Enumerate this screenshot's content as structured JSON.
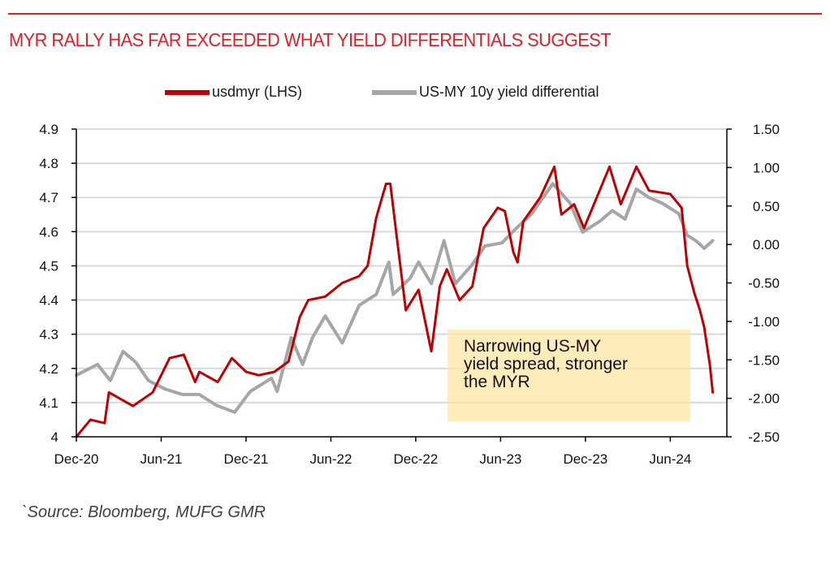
{
  "header": {
    "title": "MYR RALLY HAS FAR EXCEEDED WHAT YIELD DIFFERENTIALS SUGGEST"
  },
  "legend": [
    {
      "label": "usdmyr (LHS)",
      "color": "#c00000"
    },
    {
      "label": "US-MY 10y yield differential",
      "color": "#a6a6a6"
    }
  ],
  "annotation": {
    "lines": [
      "Narrowing US-MY",
      "yield spread, stronger",
      "the MYR"
    ]
  },
  "footer": {
    "source": "`Source: Bloomberg, MUFG GMR"
  },
  "chart_data": {
    "type": "line",
    "title": "MYR RALLY HAS FAR EXCEEDED WHAT YIELD DIFFERENTIALS SUGGEST",
    "xlabel": "",
    "x_unit": "months since Dec-2020",
    "x_range": [
      0,
      46
    ],
    "x_ticks": [
      {
        "month": 0,
        "label": "Dec-20"
      },
      {
        "month": 6,
        "label": "Jun-21"
      },
      {
        "month": 12,
        "label": "Dec-21"
      },
      {
        "month": 18,
        "label": "Jun-22"
      },
      {
        "month": 24,
        "label": "Dec-22"
      },
      {
        "month": 30,
        "label": "Jun-23"
      },
      {
        "month": 36,
        "label": "Dec-23"
      },
      {
        "month": 42,
        "label": "Jun-24"
      }
    ],
    "y_left": {
      "label": "usdmyr",
      "range": [
        4.0,
        4.9
      ],
      "ticks": [
        "4",
        "4.1",
        "4.2",
        "4.3",
        "4.4",
        "4.5",
        "4.6",
        "4.7",
        "4.8",
        "4.9"
      ],
      "tick_values": [
        4.0,
        4.1,
        4.2,
        4.3,
        4.4,
        4.5,
        4.6,
        4.7,
        4.8,
        4.9
      ]
    },
    "y_right": {
      "label": "US-MY 10y yield differential",
      "range": [
        -2.5,
        1.5
      ],
      "ticks": [
        "-2.50",
        "-2.00",
        "-1.50",
        "-1.00",
        "-0.50",
        "0.00",
        "0.50",
        "1.00",
        "1.50"
      ],
      "tick_values": [
        -2.5,
        -2.0,
        -1.5,
        -1.0,
        -0.5,
        0.0,
        0.5,
        1.0,
        1.5
      ]
    },
    "grid": "horizontal, at left-axis ticks",
    "legend_position": "top-center",
    "series": [
      {
        "name": "usdmyr (LHS)",
        "axis": "left",
        "color": "#c00000",
        "x": [
          0,
          1,
          2,
          2.3,
          4,
          5.4,
          6.6,
          7.6,
          8.4,
          8.7,
          10,
          11,
          12,
          12.9,
          14,
          15,
          15.8,
          16.4,
          17.6,
          18.8,
          20,
          20.6,
          21.2,
          21.9,
          22.2,
          22.7,
          23.3,
          24.2,
          25.1,
          25.7,
          26.2,
          27.1,
          28,
          28.8,
          29.8,
          30.3,
          30.9,
          31.2,
          31.6,
          32.8,
          33.8,
          34.3,
          35.2,
          35.9,
          37,
          37.7,
          38.5,
          39.6,
          40.5,
          42,
          42.8,
          43.2,
          43.7,
          44.1,
          44.4,
          44.8,
          45
        ],
        "values": [
          4.0,
          4.05,
          4.04,
          4.13,
          4.09,
          4.13,
          4.23,
          4.24,
          4.16,
          4.19,
          4.16,
          4.23,
          4.19,
          4.18,
          4.19,
          4.22,
          4.35,
          4.4,
          4.41,
          4.45,
          4.47,
          4.5,
          4.64,
          4.74,
          4.74,
          4.57,
          4.37,
          4.43,
          4.25,
          4.44,
          4.49,
          4.4,
          4.44,
          4.61,
          4.67,
          4.66,
          4.54,
          4.51,
          4.63,
          4.7,
          4.79,
          4.65,
          4.68,
          4.61,
          4.72,
          4.79,
          4.68,
          4.79,
          4.72,
          4.71,
          4.67,
          4.5,
          4.42,
          4.37,
          4.32,
          4.21,
          4.13
        ]
      },
      {
        "name": "US-MY 10y yield differential",
        "axis": "right",
        "color": "#a6a6a6",
        "x": [
          0,
          1.5,
          2.4,
          3.3,
          4.2,
          5.1,
          6.3,
          7.5,
          8.7,
          9.9,
          11.2,
          12.3,
          13.8,
          14.2,
          15.2,
          16,
          16.7,
          17.6,
          18.8,
          20,
          21.2,
          22.1,
          22.4,
          23.6,
          24.2,
          25.1,
          26,
          26.8,
          28,
          28.9,
          30.1,
          31,
          32.2,
          33.7,
          34.9,
          35.8,
          37,
          37.9,
          38.8,
          39.6,
          40.5,
          41.4,
          42.6,
          43.2,
          43.8,
          44.4,
          45
        ],
        "values": [
          -1.7,
          -1.56,
          -1.77,
          -1.39,
          -1.53,
          -1.77,
          -1.88,
          -1.95,
          -1.95,
          -2.09,
          -2.18,
          -1.91,
          -1.74,
          -1.91,
          -1.21,
          -1.56,
          -1.21,
          -0.93,
          -1.28,
          -0.79,
          -0.65,
          -0.23,
          -0.65,
          -0.44,
          -0.23,
          -0.51,
          0.05,
          -0.51,
          -0.26,
          -0.02,
          0.02,
          0.19,
          0.4,
          0.79,
          0.54,
          0.16,
          0.3,
          0.44,
          0.33,
          0.72,
          0.61,
          0.54,
          0.4,
          0.12,
          0.05,
          -0.05,
          0.05
        ]
      }
    ],
    "annotations": [
      "Narrowing US-MY yield spread, stronger the MYR"
    ]
  }
}
